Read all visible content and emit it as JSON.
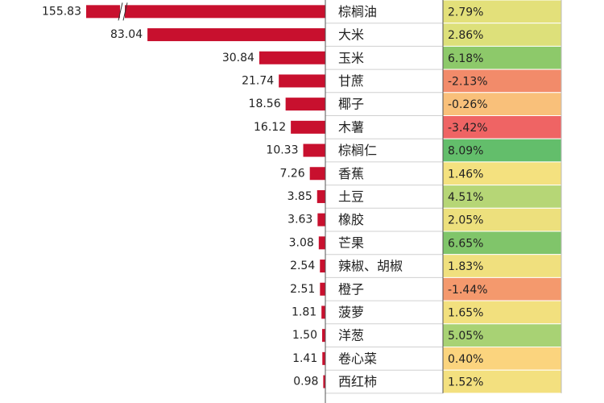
{
  "chart_data": {
    "type": "bar",
    "orientation": "horizontal",
    "bar_color": "#c8102e",
    "categories": [
      "棕榈油",
      "大米",
      "玉米",
      "甘蔗",
      "椰子",
      "木薯",
      "棕榈仁",
      "香蕉",
      "土豆",
      "橡胶",
      "芒果",
      "辣椒、胡椒",
      "橙子",
      "菠萝",
      "洋葱",
      "卷心菜",
      "西红柿"
    ],
    "values": [
      155.83,
      83.04,
      30.84,
      21.74,
      18.56,
      16.12,
      10.33,
      7.26,
      3.85,
      3.63,
      3.08,
      2.54,
      2.51,
      1.81,
      1.5,
      1.41,
      0.98
    ],
    "value_labels": [
      "155.83",
      "83.04",
      "30.84",
      "21.74",
      "18.56",
      "16.12",
      "10.33",
      "7.26",
      "3.85",
      "3.63",
      "3.08",
      "2.54",
      "2.51",
      "1.81",
      "1.50",
      "1.41",
      "0.98"
    ],
    "change_values": [
      2.79,
      2.86,
      6.18,
      -2.13,
      -0.26,
      -3.42,
      8.09,
      1.46,
      4.51,
      2.05,
      6.65,
      1.83,
      -1.44,
      1.65,
      5.05,
      0.4,
      1.52
    ],
    "change_labels": [
      "2.79%",
      "2.86%",
      "6.18%",
      "-2.13%",
      "-0.26%",
      "-3.42%",
      "8.09%",
      "1.46%",
      "4.51%",
      "2.05%",
      "6.65%",
      "1.83%",
      "-1.44%",
      "1.65%",
      "5.05%",
      "0.40%",
      "1.52%"
    ],
    "change_colors": [
      "#e3e07a",
      "#dde07a",
      "#8dc96a",
      "#f28b6a",
      "#f9c07a",
      "#ef6464",
      "#63be6b",
      "#f4e17f",
      "#b6d676",
      "#ede07d",
      "#80c56a",
      "#f0e07e",
      "#f4996d",
      "#f2e07e",
      "#a8d274",
      "#fbd47e",
      "#f3e07f"
    ]
  }
}
